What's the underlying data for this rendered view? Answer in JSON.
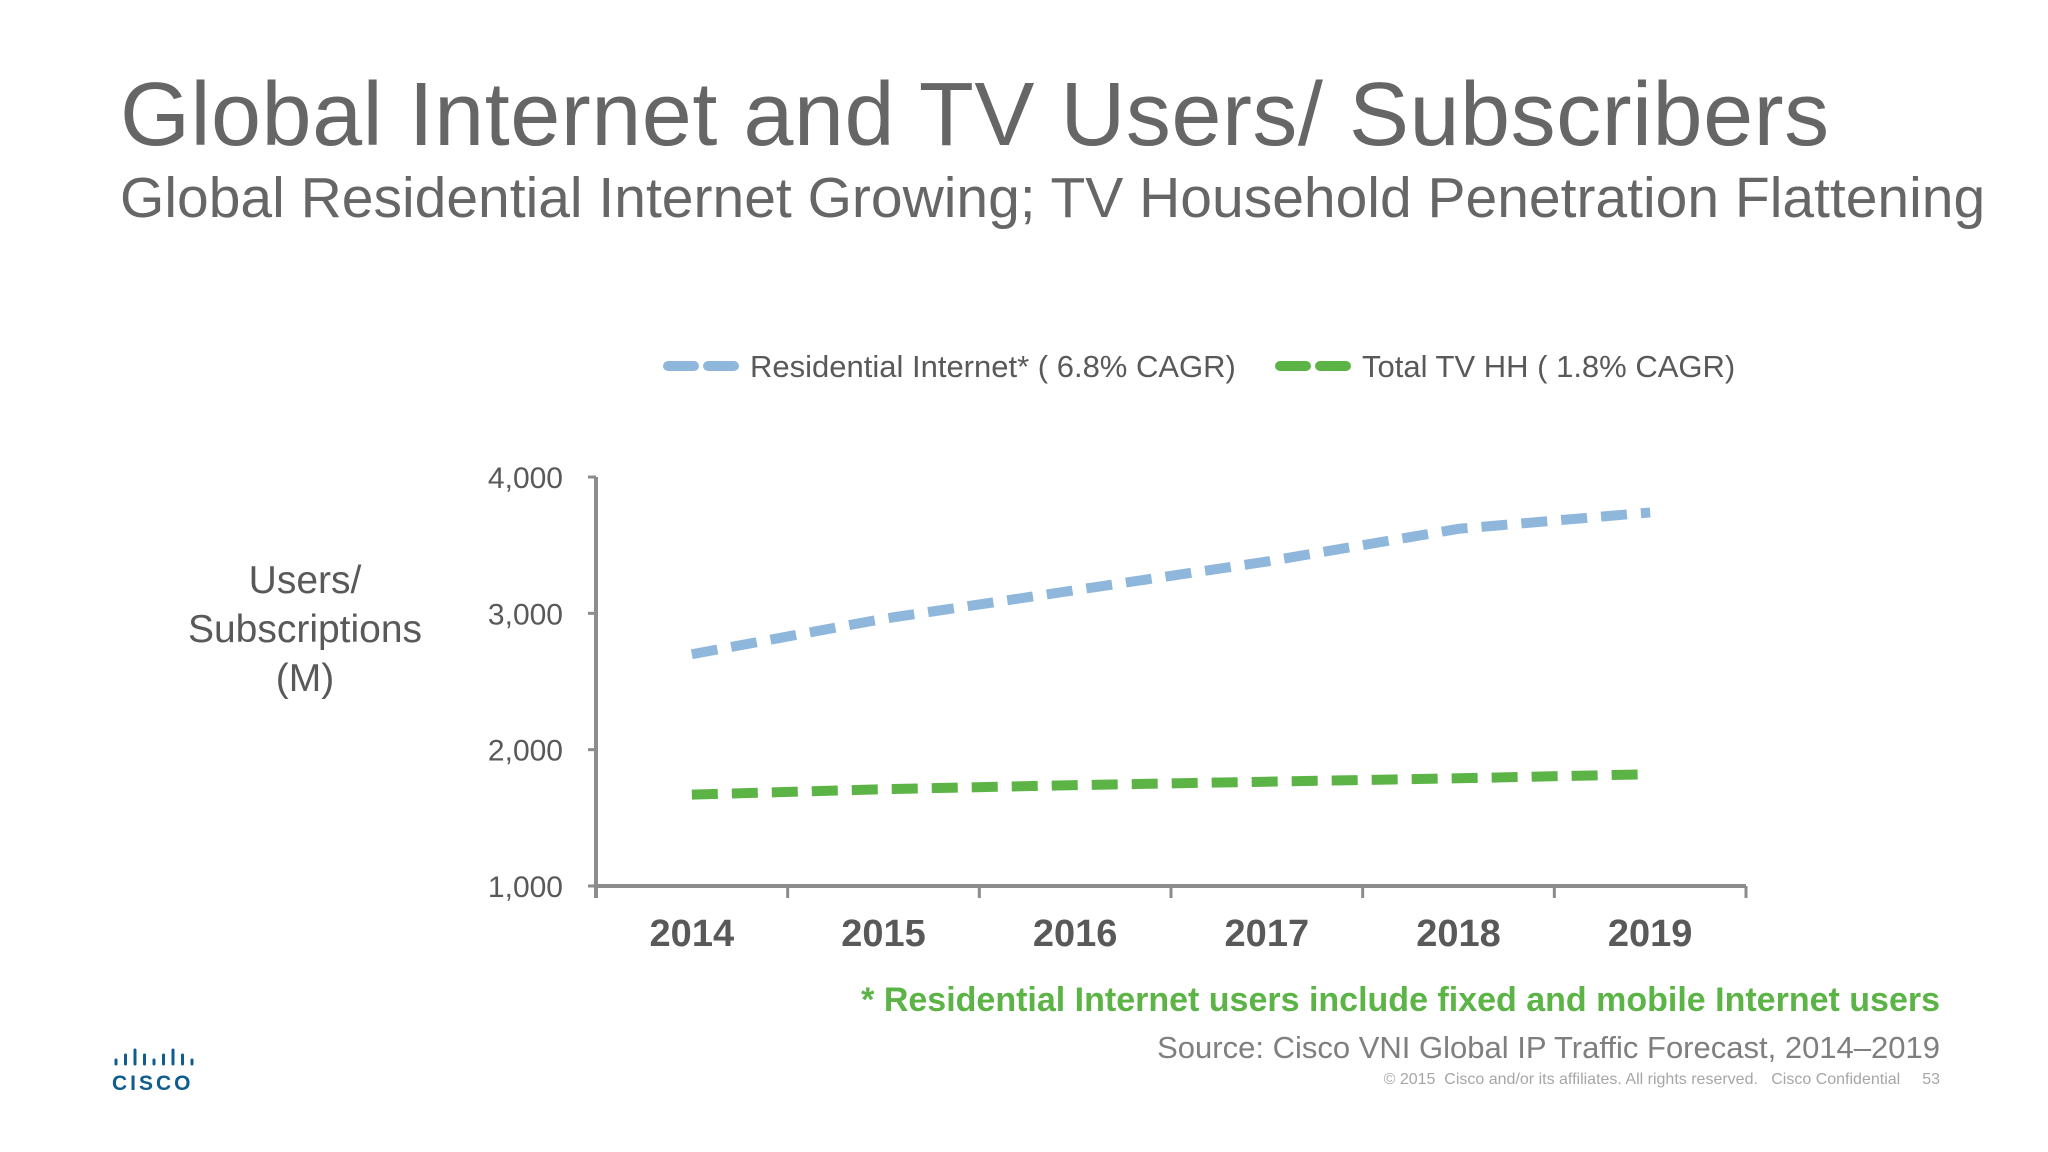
{
  "slide": {
    "title": "Global  Internet and TV Users/ Subscribers",
    "subtitle": "Global Residential Internet Growing; TV Household Penetration Flattening",
    "ylabel_lines": [
      "Users/",
      "Subscriptions",
      "(M)"
    ],
    "footnote": "* Residential Internet users include fixed and mobile Internet users",
    "source": "Source: Cisco VNI Global IP Traffic Forecast, 2014–2019",
    "copyright": "© 2015  Cisco and/or its affiliates. All rights reserved.   Cisco Confidential",
    "page_number": "53",
    "logo_text": "CISCO",
    "logo_icon": "cisco-bars-icon"
  },
  "colors": {
    "title": "#666666",
    "series_internet": "#8fb7dc",
    "series_tv": "#5cb447",
    "footnote": "#5cb447",
    "axis": "#8c8c8c",
    "logo": "#0f5c8e"
  },
  "chart_data": {
    "type": "line",
    "x": [
      "2014",
      "2015",
      "2016",
      "2017",
      "2018",
      "2019"
    ],
    "series": [
      {
        "name": "Residential Internet* ( 6.8% CAGR)",
        "values": [
          2700,
          2960,
          3170,
          3380,
          3620,
          3740
        ],
        "color": "#8fb7dc",
        "style": "dashed"
      },
      {
        "name": "Total TV HH ( 1.8% CAGR)",
        "values": [
          1670,
          1710,
          1740,
          1765,
          1790,
          1820
        ],
        "color": "#5cb447",
        "style": "dashed"
      }
    ],
    "yticks": [
      "1,000",
      "2,000",
      "3,000",
      "4,000"
    ],
    "ylim": [
      1000,
      4000
    ],
    "ylabel": "Users/ Subscriptions (M)",
    "xlabel": "",
    "legend_position": "top",
    "grid": false
  }
}
